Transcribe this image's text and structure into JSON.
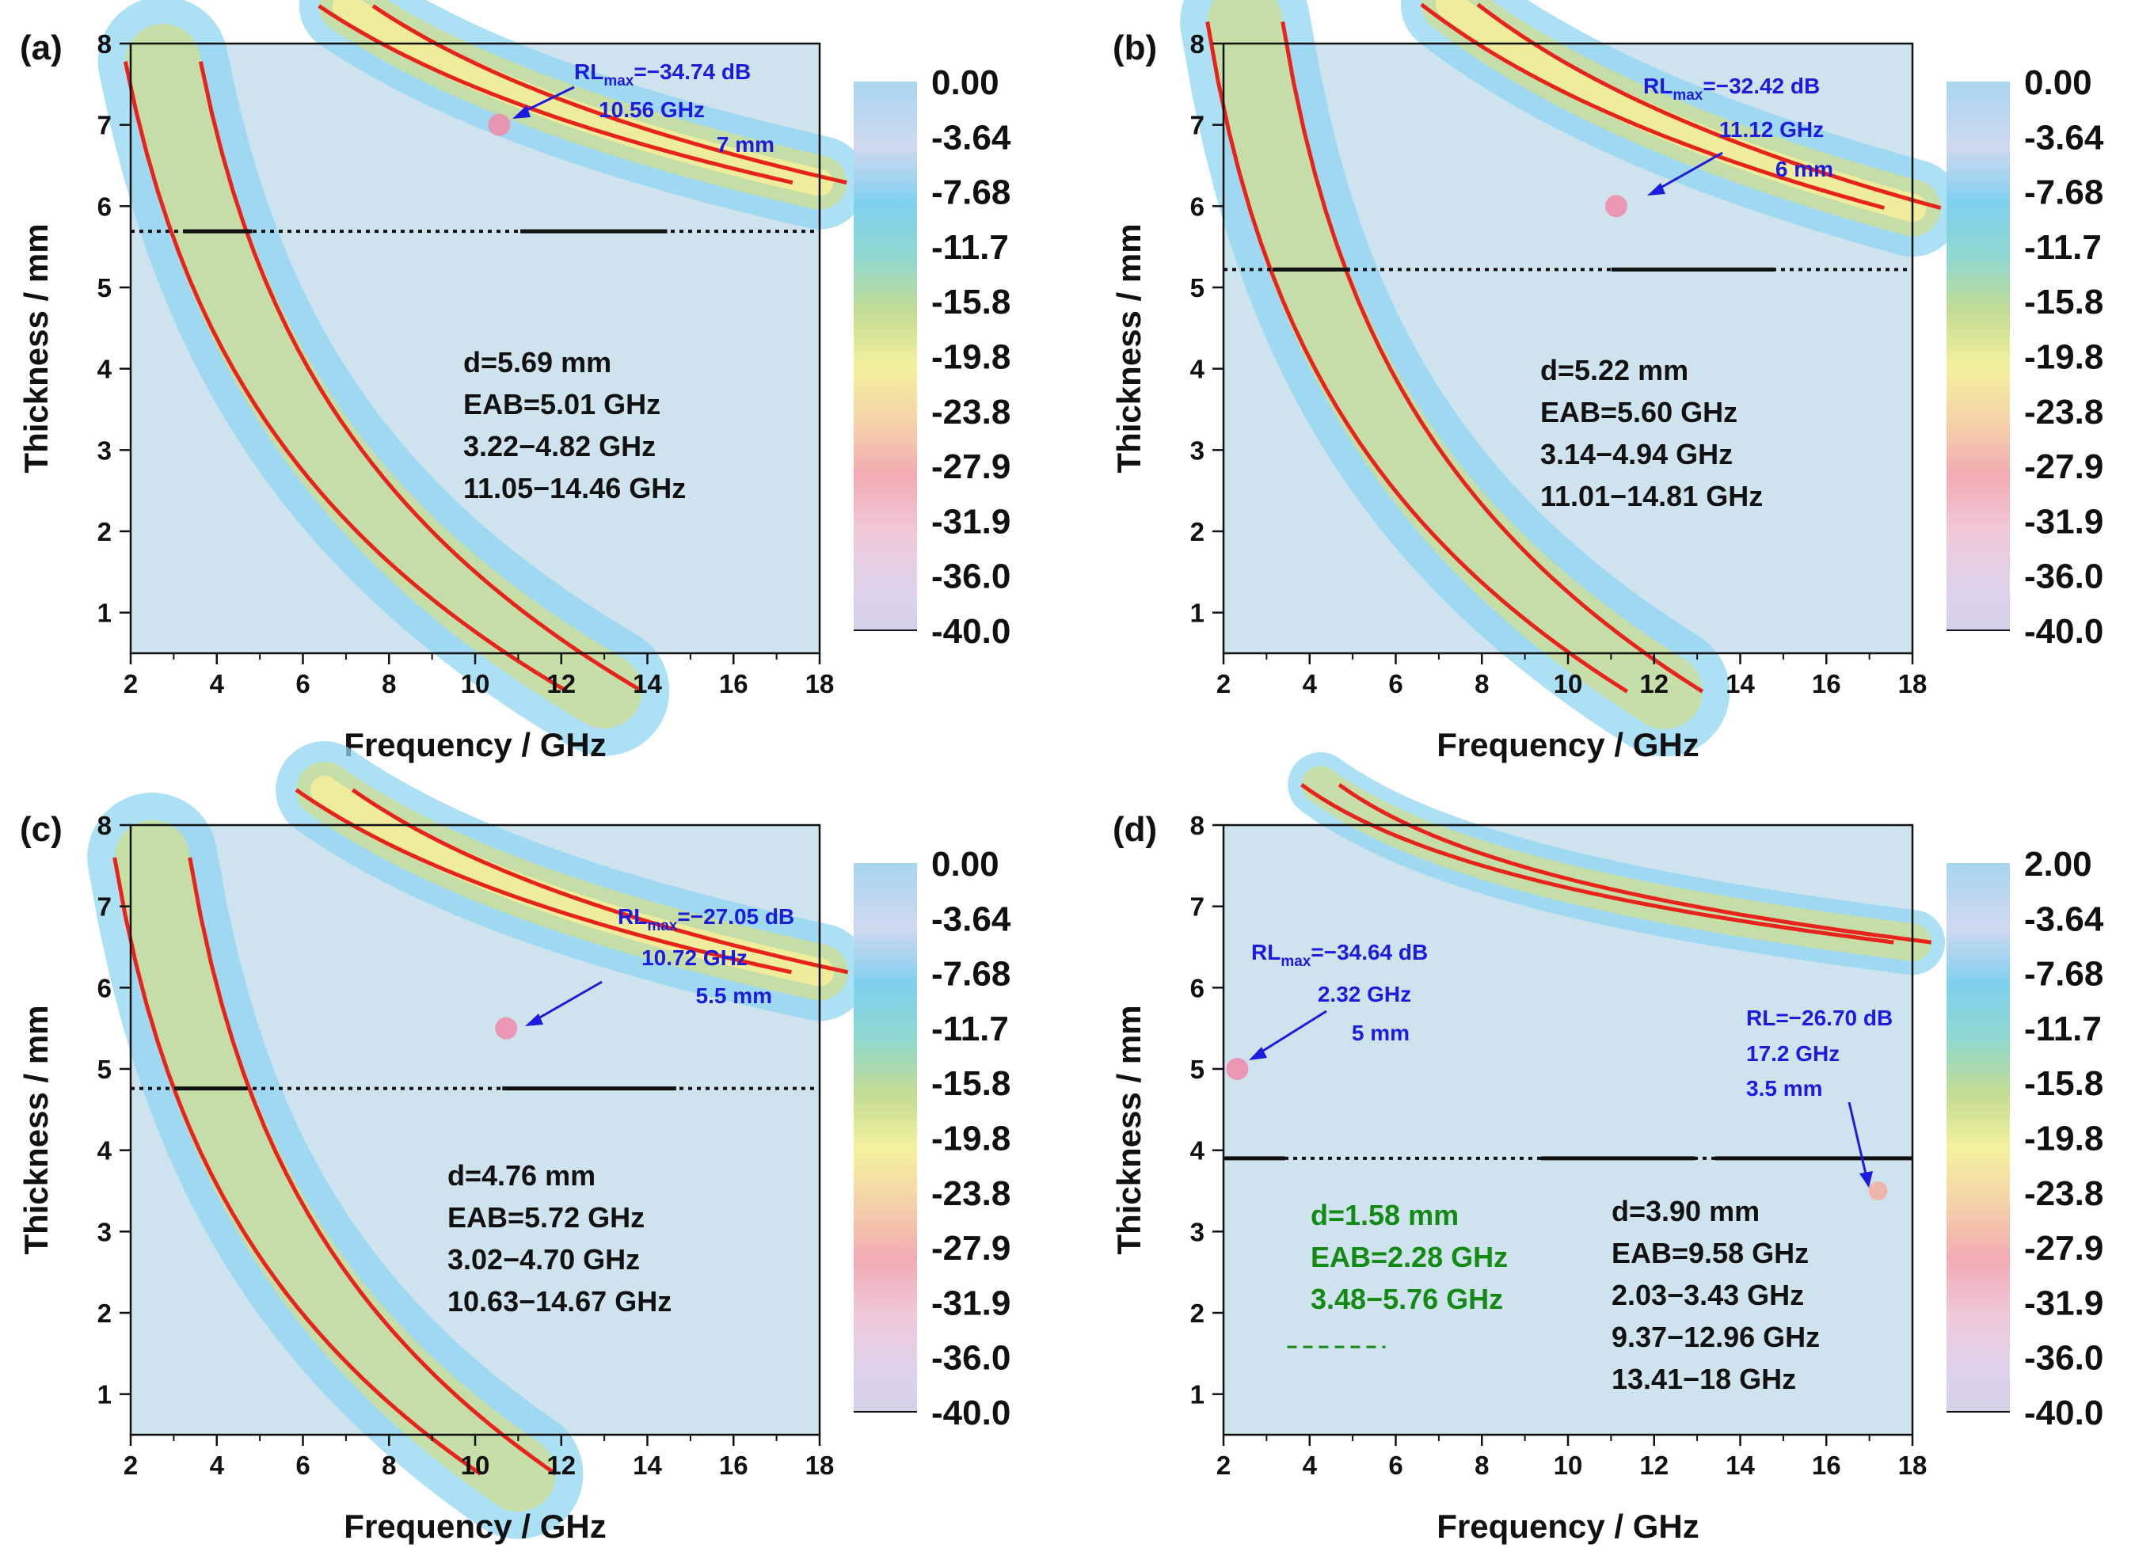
{
  "chart_data": [
    {
      "type": "heatmap",
      "panel": "(a)",
      "xlabel": "Frequency / GHz",
      "ylabel": "Thickness / mm",
      "xlim": [
        2,
        18
      ],
      "ylim": [
        0.5,
        8
      ],
      "xticks": [
        "2",
        "4",
        "6",
        "8",
        "10",
        "12",
        "14",
        "16",
        "18"
      ],
      "yticks": [
        "1",
        "2",
        "3",
        "4",
        "5",
        "6",
        "7",
        "8"
      ],
      "colorbar_ticks": [
        "0.00",
        "-3.64",
        "-7.68",
        "-11.7",
        "-15.8",
        "-19.8",
        "-23.8",
        "-27.9",
        "-31.9",
        "-36.0",
        "-40.0"
      ],
      "colorbar_range": [
        -40,
        0
      ],
      "contour_level": -10,
      "matching_thickness_mm": 5.69,
      "eab_segments_ghz": [
        [
          3.22,
          4.82
        ],
        [
          11.05,
          14.46
        ]
      ],
      "rl_max": {
        "rl_label": "RL",
        "rl_sub": "max",
        "value_text": "=−34.74 dB",
        "freq_text": "10.56 GHz",
        "thick_text": "7 mm",
        "freq": 10.56,
        "thickness": 7.0,
        "value": -34.74
      },
      "stats": [
        "d=5.69 mm",
        "EAB=5.01 GHz",
        "3.22−4.82 GHz",
        "11.05−14.46 GHz"
      ],
      "bands": [
        {
          "f0": 2.9,
          "t0": 7.4,
          "a": 3.6,
          "b": 0.32
        },
        {
          "f0": 9.6,
          "t0": 7.7,
          "a": 2.0,
          "b": 0.23,
          "peak": true
        }
      ]
    },
    {
      "type": "heatmap",
      "panel": "(b)",
      "xlabel": "Frequency / GHz",
      "ylabel": "Thickness / mm",
      "xlim": [
        2,
        18
      ],
      "ylim": [
        0.5,
        8
      ],
      "xticks": [
        "2",
        "4",
        "6",
        "8",
        "10",
        "12",
        "14",
        "16",
        "18"
      ],
      "yticks": [
        "1",
        "2",
        "3",
        "4",
        "5",
        "6",
        "7",
        "8"
      ],
      "colorbar_ticks": [
        "0.00",
        "-3.64",
        "-7.68",
        "-11.7",
        "-15.8",
        "-19.8",
        "-23.8",
        "-27.9",
        "-31.9",
        "-36.0",
        "-40.0"
      ],
      "colorbar_range": [
        -40,
        0
      ],
      "contour_level": -10,
      "matching_thickness_mm": 5.22,
      "eab_segments_ghz": [
        [
          3.14,
          4.94
        ],
        [
          11.01,
          14.81
        ]
      ],
      "rl_max": {
        "rl_label": "RL",
        "rl_sub": "max",
        "value_text": "=−32.42 dB",
        "freq_text": "11.12 GHz",
        "thick_text": "6 mm",
        "freq": 11.12,
        "thickness": 6.0,
        "value": -32.42
      },
      "stats": [
        "d=5.22 mm",
        "EAB=5.60 GHz",
        "3.14−4.94 GHz",
        "11.01−14.81 GHz"
      ],
      "bands": [
        {
          "f0": 2.8,
          "t0": 7.4,
          "a": 3.6,
          "b": 0.32
        },
        {
          "f0": 9.5,
          "t0": 7.7,
          "a": 2.4,
          "b": 0.24,
          "peak": true
        }
      ]
    },
    {
      "type": "heatmap",
      "panel": "(c)",
      "xlabel": "Frequency / GHz",
      "ylabel": "Thickness / mm",
      "xlim": [
        2,
        18
      ],
      "ylim": [
        0.5,
        8
      ],
      "xticks": [
        "2",
        "4",
        "6",
        "8",
        "10",
        "12",
        "14",
        "16",
        "18"
      ],
      "yticks": [
        "1",
        "2",
        "3",
        "4",
        "5",
        "6",
        "7",
        "8"
      ],
      "colorbar_ticks": [
        "0.00",
        "-3.64",
        "-7.68",
        "-11.7",
        "-15.8",
        "-19.8",
        "-23.8",
        "-27.9",
        "-31.9",
        "-36.0",
        "-40.0"
      ],
      "colorbar_range": [
        -40,
        0
      ],
      "contour_level": -10,
      "matching_thickness_mm": 4.76,
      "eab_segments_ghz": [
        [
          3.02,
          4.7
        ],
        [
          10.63,
          14.67
        ]
      ],
      "rl_max": {
        "rl_label": "RL",
        "rl_sub": "max",
        "value_text": "=−27.05 dB",
        "freq_text": "10.72 GHz",
        "thick_text": "5.5 mm",
        "freq": 10.72,
        "thickness": 5.5,
        "value": -27.05
      },
      "stats": [
        "d=4.76 mm",
        "EAB=5.72 GHz",
        "3.02−4.70 GHz",
        "10.63−14.67 GHz"
      ],
      "bands": [
        {
          "f0": 2.5,
          "t0": 7.6,
          "a": 3.5,
          "b": 0.32
        },
        {
          "f0": 8.9,
          "t0": 7.7,
          "a": 1.9,
          "b": 0.24,
          "peak": true
        }
      ]
    },
    {
      "type": "heatmap",
      "panel": "(d)",
      "xlabel": "Frequency / GHz",
      "ylabel": "Thickness / mm",
      "xlim": [
        2,
        18
      ],
      "ylim": [
        0.5,
        8
      ],
      "xticks": [
        "2",
        "4",
        "6",
        "8",
        "10",
        "12",
        "14",
        "16",
        "18"
      ],
      "yticks": [
        "1",
        "2",
        "3",
        "4",
        "5",
        "6",
        "7",
        "8"
      ],
      "colorbar_ticks": [
        "2.00",
        "-3.64",
        "-7.68",
        "-11.7",
        "-15.8",
        "-19.8",
        "-23.8",
        "-27.9",
        "-31.9",
        "-36.0",
        "-40.0"
      ],
      "colorbar_range": [
        -40,
        2
      ],
      "contour_level": -10,
      "matching_thickness_mm": 3.9,
      "secondary_thickness_mm": 1.58,
      "eab_segments_ghz": [
        [
          2.03,
          3.43
        ],
        [
          9.37,
          12.96
        ],
        [
          13.41,
          18
        ]
      ],
      "secondary_eab_segments_ghz": [
        [
          3.48,
          5.76
        ]
      ],
      "rl_max": {
        "rl_label": "RL",
        "rl_sub": "max",
        "value_text": "=−34.64 dB",
        "freq_text": "2.32 GHz",
        "thick_text": "5 mm",
        "freq": 2.32,
        "thickness": 5.0,
        "value": -34.64
      },
      "rl_second": {
        "value_text": "RL=−26.70 dB",
        "freq_text": "17.2 GHz",
        "thick_text": "3.5 mm",
        "freq": 17.2,
        "thickness": 3.5,
        "value": -26.7
      },
      "stats": [
        "d=3.90 mm",
        "EAB=9.58 GHz",
        "2.03−3.43 GHz",
        "9.37−12.96 GHz",
        "13.41−18 GHz"
      ],
      "stats_green": [
        "d=1.58 mm",
        "EAB=2.28 GHz",
        "3.48−5.76 GHz"
      ],
      "bands": [
        {
          "f0": 1.2,
          "t0": 6.4,
          "a": 4.6,
          "b": 0.42,
          "peak": true
        },
        {
          "f0": 6.3,
          "t0": 7.9,
          "a": 1.1,
          "b": 0.16
        }
      ]
    }
  ]
}
